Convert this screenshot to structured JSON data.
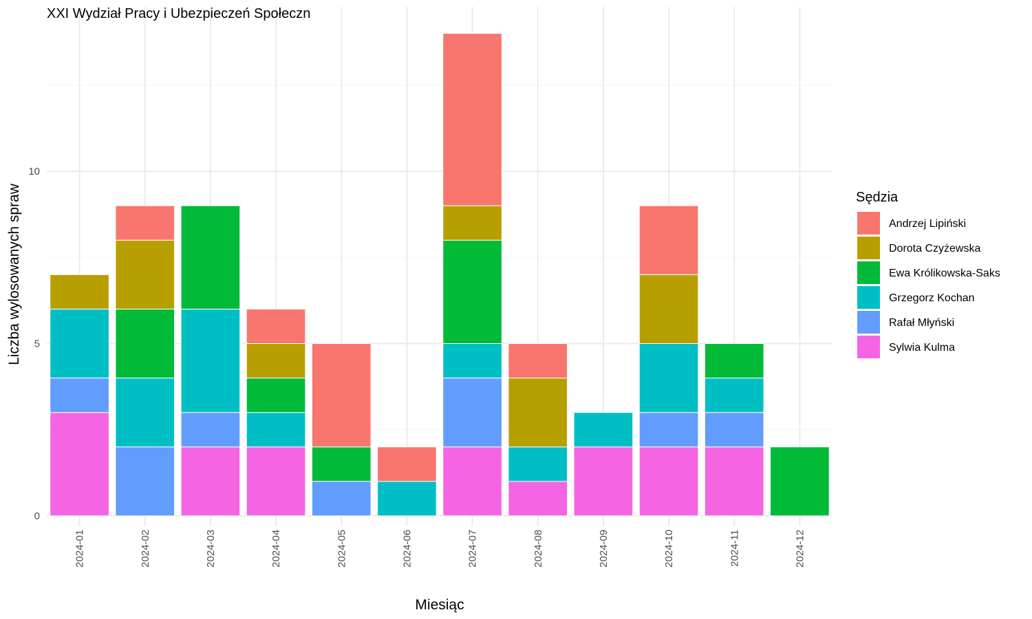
{
  "chart_data": {
    "type": "bar",
    "stacked": true,
    "title": "XXI Wydział Pracy i Ubezpieczeń Społeczn",
    "xlabel": "Miesiąc",
    "ylabel": "Liczba wylosowanych spraw",
    "ylim": [
      0,
      14
    ],
    "yticks": [
      0,
      5,
      10
    ],
    "grid": true,
    "legend_position": "right",
    "legend_title": "Sędzia",
    "categories": [
      "2024-01",
      "2024-02",
      "2024-03",
      "2024-04",
      "2024-05",
      "2024-06",
      "2024-07",
      "2024-08",
      "2024-09",
      "2024-10",
      "2024-11",
      "2024-12"
    ],
    "series": [
      {
        "name": "Sylwia Kulma",
        "color": "#F564E3",
        "values": [
          3,
          0,
          2,
          2,
          0,
          0,
          2,
          1,
          2,
          2,
          2,
          0
        ]
      },
      {
        "name": "Rafał Młyński",
        "color": "#619CFF",
        "values": [
          1,
          2,
          1,
          0,
          1,
          0,
          2,
          0,
          0,
          1,
          1,
          0
        ]
      },
      {
        "name": "Grzegorz Kochan",
        "color": "#00BFC4",
        "values": [
          2,
          2,
          3,
          1,
          0,
          1,
          1,
          1,
          1,
          2,
          1,
          0
        ]
      },
      {
        "name": "Ewa Królikowska-Saks",
        "color": "#00BA38",
        "values": [
          0,
          2,
          3,
          1,
          1,
          0,
          3,
          0,
          0,
          0,
          1,
          2
        ]
      },
      {
        "name": "Dorota Czyżewska",
        "color": "#B79F00",
        "values": [
          1,
          2,
          0,
          1,
          0,
          0,
          1,
          2,
          0,
          2,
          0,
          0
        ]
      },
      {
        "name": "Andrzej Lipiński",
        "color": "#F8766D",
        "values": [
          0,
          1,
          0,
          1,
          3,
          1,
          5,
          1,
          0,
          2,
          0,
          0
        ]
      }
    ],
    "legend_order": [
      "Andrzej Lipiński",
      "Dorota Czyżewska",
      "Ewa Królikowska-Saks",
      "Grzegorz Kochan",
      "Rafał Młyński",
      "Sylwia Kulma"
    ]
  }
}
